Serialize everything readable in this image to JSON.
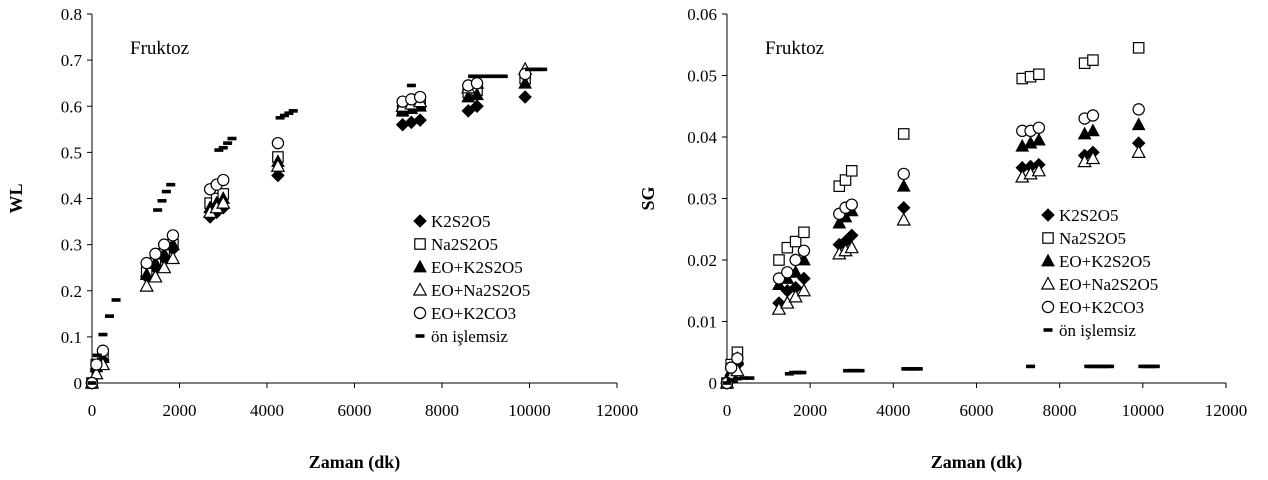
{
  "chart_data": [
    {
      "type": "scatter",
      "annotation": "Fruktoz",
      "xlabel": "Zaman (dk)",
      "ylabel": "WL",
      "xlim": [
        0,
        12000
      ],
      "ylim": [
        0,
        0.8
      ],
      "xticks": [
        0,
        2000,
        4000,
        6000,
        8000,
        10000,
        12000
      ],
      "yticks": [
        0,
        0.1,
        0.2,
        0.3,
        0.4,
        0.5,
        0.6,
        0.7,
        0.8
      ],
      "xtick_labels": [
        "0",
        "2000",
        "4000",
        "6000",
        "8000",
        "10000",
        "12000"
      ],
      "ytick_labels": [
        "0",
        "0.1",
        "0.2",
        "0.3",
        "0.4",
        "0.5",
        "0.6",
        "0.7",
        "0.8"
      ],
      "legend_position": "right",
      "series": [
        {
          "name": "K2S2O5",
          "marker": "diamond-filled",
          "x": [
            0,
            100,
            250,
            1250,
            1450,
            1650,
            1850,
            2700,
            2850,
            3000,
            4250,
            7100,
            7300,
            7500,
            8600,
            8800,
            9900
          ],
          "y": [
            0,
            0.03,
            0.05,
            0.23,
            0.25,
            0.27,
            0.29,
            0.36,
            0.37,
            0.38,
            0.45,
            0.56,
            0.565,
            0.57,
            0.59,
            0.6,
            0.62
          ]
        },
        {
          "name": "Na2S2O5",
          "marker": "square-open",
          "x": [
            0,
            100,
            250,
            1250,
            1450,
            1650,
            1850,
            2700,
            2850,
            3000,
            4250,
            7100,
            7300,
            7500,
            8600,
            8800,
            9900
          ],
          "y": [
            0,
            0.04,
            0.06,
            0.24,
            0.26,
            0.28,
            0.3,
            0.39,
            0.4,
            0.41,
            0.49,
            0.59,
            0.6,
            0.605,
            0.63,
            0.635,
            0.66
          ]
        },
        {
          "name": "EO+K2S2O5",
          "marker": "triangle-filled",
          "x": [
            0,
            100,
            250,
            1250,
            1450,
            1650,
            1850,
            2700,
            2850,
            3000,
            4250,
            7100,
            7300,
            7500,
            8600,
            8800,
            9900
          ],
          "y": [
            0,
            0.035,
            0.055,
            0.235,
            0.26,
            0.28,
            0.3,
            0.38,
            0.39,
            0.4,
            0.48,
            0.59,
            0.595,
            0.6,
            0.62,
            0.625,
            0.65
          ]
        },
        {
          "name": "EO+Na2S2O5",
          "marker": "triangle-open",
          "x": [
            0,
            100,
            250,
            1250,
            1450,
            1650,
            1850,
            2700,
            2850,
            3000,
            4250,
            7100,
            7300,
            7500,
            8600,
            8800,
            9900
          ],
          "y": [
            0,
            0.02,
            0.04,
            0.21,
            0.23,
            0.25,
            0.27,
            0.37,
            0.38,
            0.39,
            0.47,
            0.6,
            0.605,
            0.61,
            0.64,
            0.65,
            0.68
          ]
        },
        {
          "name": "EO+K2CO3",
          "marker": "circle-open",
          "x": [
            0,
            100,
            250,
            1250,
            1450,
            1650,
            1850,
            2700,
            2850,
            3000,
            4250,
            7100,
            7300,
            7500,
            8600,
            8800,
            9900
          ],
          "y": [
            0,
            0.04,
            0.07,
            0.26,
            0.28,
            0.3,
            0.32,
            0.42,
            0.43,
            0.44,
            0.52,
            0.61,
            0.615,
            0.62,
            0.645,
            0.65,
            0.67
          ]
        },
        {
          "name": "ön işlemsiz",
          "marker": "dash",
          "x": [
            0,
            120,
            250,
            400,
            550,
            1500,
            1600,
            1700,
            1800,
            2900,
            3000,
            3100,
            3200,
            4300,
            4400,
            4500,
            4600,
            7300,
            8700,
            8800,
            8900,
            9000,
            9100,
            9200,
            9300,
            9400,
            10000,
            10100,
            10200,
            10300
          ],
          "y": [
            0,
            0.06,
            0.105,
            0.145,
            0.18,
            0.375,
            0.395,
            0.415,
            0.43,
            0.505,
            0.51,
            0.52,
            0.53,
            0.575,
            0.58,
            0.585,
            0.59,
            0.645,
            0.665,
            0.665,
            0.665,
            0.665,
            0.665,
            0.665,
            0.665,
            0.665,
            0.68,
            0.68,
            0.68,
            0.68
          ]
        }
      ]
    },
    {
      "type": "scatter",
      "annotation": "Fruktoz",
      "xlabel": "Zaman (dk)",
      "ylabel": "SG",
      "xlim": [
        0,
        12000
      ],
      "ylim": [
        0,
        0.06
      ],
      "xticks": [
        0,
        2000,
        4000,
        6000,
        8000,
        10000,
        12000
      ],
      "yticks": [
        0,
        0.01,
        0.02,
        0.03,
        0.04,
        0.05,
        0.06
      ],
      "xtick_labels": [
        "0",
        "2000",
        "4000",
        "6000",
        "8000",
        "10000",
        "12000"
      ],
      "ytick_labels": [
        "0",
        "0.01",
        "0.02",
        "0.03",
        "0.04",
        "0.05",
        "0.06"
      ],
      "legend_position": "right",
      "series": [
        {
          "name": "K2S2O5",
          "marker": "diamond-filled",
          "x": [
            0,
            100,
            250,
            1250,
            1450,
            1650,
            1850,
            2700,
            2850,
            3000,
            4250,
            7100,
            7300,
            7500,
            8600,
            8800,
            9900
          ],
          "y": [
            0,
            0.001,
            0.003,
            0.013,
            0.015,
            0.0155,
            0.017,
            0.0225,
            0.023,
            0.024,
            0.0285,
            0.035,
            0.0352,
            0.0355,
            0.037,
            0.0375,
            0.039
          ]
        },
        {
          "name": "Na2S2O5",
          "marker": "square-open",
          "x": [
            0,
            100,
            250,
            1250,
            1450,
            1650,
            1850,
            2700,
            2850,
            3000,
            4250,
            7100,
            7300,
            7500,
            8600,
            8800,
            9900
          ],
          "y": [
            0,
            0.003,
            0.005,
            0.02,
            0.022,
            0.023,
            0.0245,
            0.032,
            0.033,
            0.0345,
            0.0405,
            0.0495,
            0.0498,
            0.0502,
            0.052,
            0.0525,
            0.0545
          ]
        },
        {
          "name": "EO+K2S2O5",
          "marker": "triangle-filled",
          "x": [
            0,
            100,
            250,
            1250,
            1450,
            1650,
            1850,
            2700,
            2850,
            3000,
            4250,
            7100,
            7300,
            7500,
            8600,
            8800,
            9900
          ],
          "y": [
            0,
            0.002,
            0.004,
            0.016,
            0.017,
            0.018,
            0.02,
            0.026,
            0.027,
            0.028,
            0.032,
            0.0385,
            0.039,
            0.0395,
            0.0405,
            0.041,
            0.042
          ]
        },
        {
          "name": "EO+Na2S2O5",
          "marker": "triangle-open",
          "x": [
            0,
            100,
            250,
            1250,
            1450,
            1650,
            1850,
            2700,
            2850,
            3000,
            4250,
            7100,
            7300,
            7500,
            8600,
            8800,
            9900
          ],
          "y": [
            0,
            0.001,
            0.002,
            0.012,
            0.013,
            0.014,
            0.015,
            0.021,
            0.0215,
            0.022,
            0.0265,
            0.0335,
            0.034,
            0.0345,
            0.036,
            0.0365,
            0.0375
          ]
        },
        {
          "name": "EO+K2CO3",
          "marker": "circle-open",
          "x": [
            0,
            100,
            250,
            1250,
            1450,
            1650,
            1850,
            2700,
            2850,
            3000,
            4250,
            7100,
            7300,
            7500,
            8600,
            8800,
            9900
          ],
          "y": [
            0,
            0.0025,
            0.004,
            0.017,
            0.018,
            0.02,
            0.0215,
            0.0275,
            0.0285,
            0.029,
            0.034,
            0.041,
            0.041,
            0.0415,
            0.043,
            0.0435,
            0.0445
          ]
        },
        {
          "name": "ön işlemsiz",
          "marker": "dash",
          "x": [
            0,
            100,
            250,
            400,
            550,
            1500,
            1600,
            1700,
            1800,
            2900,
            3000,
            3100,
            3200,
            4300,
            4400,
            4500,
            4600,
            7300,
            8700,
            8800,
            8900,
            9000,
            9100,
            9200,
            10000,
            10100,
            10200,
            10300
          ],
          "y": [
            0,
            0.0005,
            0.0007,
            0.0008,
            0.0008,
            0.0015,
            0.0017,
            0.0017,
            0.0017,
            0.002,
            0.002,
            0.002,
            0.002,
            0.0023,
            0.0023,
            0.0023,
            0.0023,
            0.0027,
            0.0027,
            0.0027,
            0.0027,
            0.0027,
            0.0027,
            0.0027,
            0.0027,
            0.0027,
            0.0027,
            0.0027
          ]
        }
      ]
    }
  ]
}
